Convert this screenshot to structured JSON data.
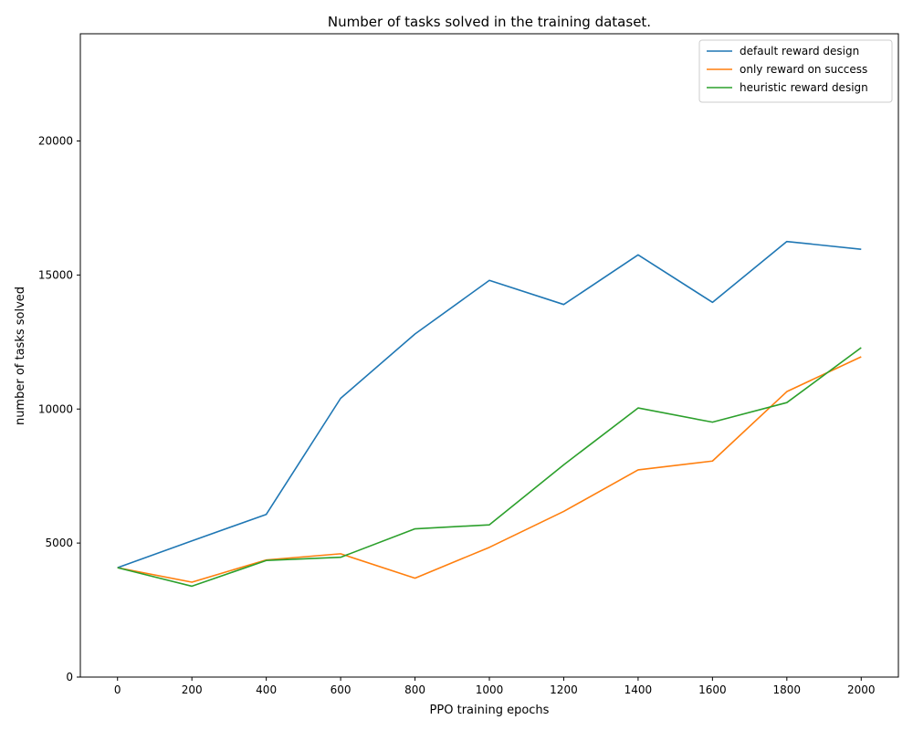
{
  "chart_data": {
    "type": "line",
    "title": "Number of tasks solved in the training dataset.",
    "xlabel": "PPO training epochs",
    "ylabel": "number of tasks solved",
    "x": [
      0,
      200,
      400,
      600,
      800,
      1000,
      1200,
      1400,
      1600,
      1800,
      2000
    ],
    "xlim": [
      -100,
      2100
    ],
    "ylim": [
      0,
      24000
    ],
    "xticks": [
      0,
      200,
      400,
      600,
      800,
      1000,
      1200,
      1400,
      1600,
      1800,
      2000
    ],
    "yticks": [
      0,
      5000,
      10000,
      15000,
      20000
    ],
    "grid": false,
    "legend_position": "top-right",
    "series": [
      {
        "name": "default reward design",
        "color": "#1f77b4",
        "values": [
          4080,
          5080,
          6070,
          10400,
          12800,
          14800,
          13900,
          15750,
          13980,
          16250,
          15960
        ]
      },
      {
        "name": "only reward on success",
        "color": "#ff7f0e",
        "values": [
          4080,
          3540,
          4370,
          4600,
          3690,
          4840,
          6180,
          7730,
          8060,
          10650,
          11950
        ]
      },
      {
        "name": "heuristic reward design",
        "color": "#2ca02c",
        "values": [
          4080,
          3390,
          4350,
          4470,
          5530,
          5680,
          7920,
          10040,
          9510,
          10240,
          12290
        ]
      }
    ]
  }
}
